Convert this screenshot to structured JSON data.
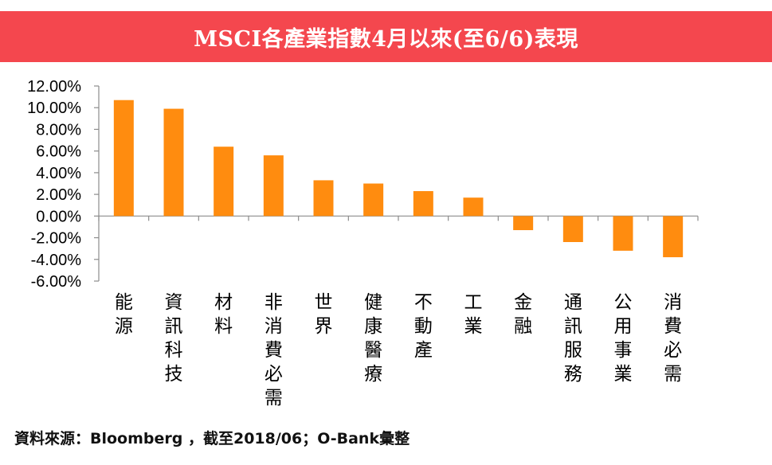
{
  "colors": {
    "title_bg": "#f4474e",
    "bar": "#ff8c0f",
    "axis": "#8c8c8c"
  },
  "source_note": "資料來源：Bloomberg ，截至2018/06；O-Bank彙整",
  "chart_data": {
    "type": "bar",
    "title": "MSCI各產業指數4月以來(至6/6)表現",
    "categories": [
      "能源",
      "資訊科技",
      "材料",
      "非消費必需",
      "世界",
      "健康醫療",
      "不動產",
      "工業",
      "金融",
      "通訊服務",
      "公用事業",
      "消費必需"
    ],
    "values": [
      10.7,
      9.9,
      6.4,
      5.6,
      3.3,
      3.0,
      2.3,
      1.7,
      -1.3,
      -2.4,
      -3.2,
      -3.8
    ],
    "unit": "%",
    "ylim": [
      -6,
      12
    ],
    "y_ticks": [
      "12.00%",
      "10.00%",
      "8.00%",
      "6.00%",
      "4.00%",
      "2.00%",
      "0.00%",
      "-2.00%",
      "-4.00%",
      "-6.00%"
    ],
    "y_tick_values": [
      12,
      10,
      8,
      6,
      4,
      2,
      0,
      -2,
      -4,
      -6
    ],
    "grid": false,
    "legend": "none"
  }
}
